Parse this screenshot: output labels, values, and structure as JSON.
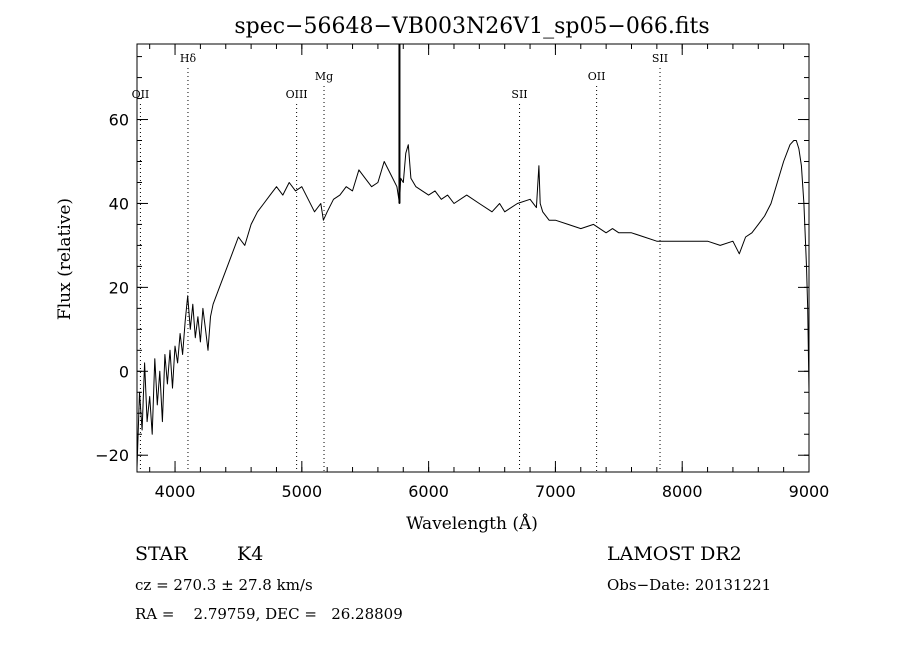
{
  "chart_data": {
    "type": "line",
    "title": "spec−56648−VB003N26V1_sp05−066.fits",
    "xlabel": "Wavelength (Å)",
    "ylabel": "Flux (relative)",
    "xlim": [
      3700,
      9000
    ],
    "ylim": [
      -24,
      78
    ],
    "x_ticks": [
      4000,
      5000,
      6000,
      7000,
      8000,
      9000
    ],
    "y_ticks": [
      -20,
      0,
      20,
      40,
      60
    ],
    "x_minor_step": 200,
    "y_minor_step": 5,
    "series": [
      {
        "color": "#000000",
        "x": [
          3700,
          3720,
          3740,
          3760,
          3780,
          3800,
          3820,
          3840,
          3860,
          3880,
          3900,
          3920,
          3940,
          3960,
          3980,
          4000,
          4020,
          4040,
          4060,
          4080,
          4100,
          4120,
          4140,
          4160,
          4180,
          4200,
          4220,
          4240,
          4260,
          4280,
          4300,
          4350,
          4400,
          4450,
          4500,
          4550,
          4600,
          4650,
          4700,
          4750,
          4800,
          4850,
          4900,
          4950,
          5000,
          5050,
          5100,
          5150,
          5170,
          5200,
          5250,
          5300,
          5350,
          5400,
          5450,
          5500,
          5550,
          5600,
          5650,
          5700,
          5750,
          5770,
          5780,
          5800,
          5820,
          5840,
          5860,
          5900,
          5950,
          6000,
          6050,
          6100,
          6150,
          6200,
          6300,
          6400,
          6500,
          6560,
          6600,
          6700,
          6800,
          6850,
          6870,
          6880,
          6900,
          6950,
          7000,
          7100,
          7200,
          7300,
          7400,
          7450,
          7500,
          7550,
          7600,
          7700,
          7800,
          7900,
          8000,
          8100,
          8200,
          8300,
          8400,
          8450,
          8500,
          8550,
          8600,
          8650,
          8700,
          8750,
          8800,
          8850,
          8880,
          8900,
          8920,
          8940,
          8960,
          8980,
          8990,
          9000
        ],
        "y": [
          -23,
          -5,
          -14,
          2,
          -12,
          -6,
          -15,
          3,
          -8,
          0,
          -12,
          4,
          -3,
          5,
          -4,
          6,
          2,
          9,
          4,
          12,
          18,
          10,
          16,
          8,
          13,
          7,
          15,
          10,
          5,
          13,
          16,
          20,
          24,
          28,
          32,
          30,
          35,
          38,
          40,
          42,
          44,
          42,
          45,
          43,
          44,
          41,
          38,
          40,
          36,
          38,
          41,
          42,
          44,
          43,
          48,
          46,
          44,
          45,
          50,
          47,
          44,
          40,
          46,
          45,
          52,
          54,
          46,
          44,
          43,
          42,
          43,
          41,
          42,
          40,
          42,
          40,
          38,
          40,
          38,
          40,
          41,
          39,
          49,
          40,
          38,
          36,
          36,
          35,
          34,
          35,
          33,
          34,
          33,
          33,
          33,
          32,
          31,
          31,
          31,
          31,
          31,
          30,
          31,
          28,
          32,
          33,
          35,
          37,
          40,
          45,
          50,
          54,
          55,
          55,
          53,
          49,
          40,
          25,
          15,
          -5
        ]
      }
    ],
    "line_markers": [
      {
        "name": "OII",
        "x": 3727,
        "label_row": 2
      },
      {
        "name": "Hδ",
        "x": 4102,
        "label_row": 0
      },
      {
        "name": "OIII",
        "x": 4959,
        "label_row": 2
      },
      {
        "name": "Mg",
        "x": 5175,
        "label_row": 1
      },
      {
        "name": "SII",
        "x": 6717,
        "label_row": 2
      },
      {
        "name": "OII",
        "x": 7325,
        "label_row": 1
      },
      {
        "name": "SII",
        "x": 7825,
        "label_row": 0
      }
    ],
    "marker_spike": {
      "x": 5770,
      "y": 78
    }
  },
  "footer": {
    "class_label": "STAR",
    "subclass": "K4",
    "survey": "LAMOST DR2",
    "redshift": "cz = 270.3 ± 27.8 km/s",
    "obs_date": "Obs−Date: 20131221",
    "coords": "RA =    2.79759, DEC =   26.28809"
  }
}
